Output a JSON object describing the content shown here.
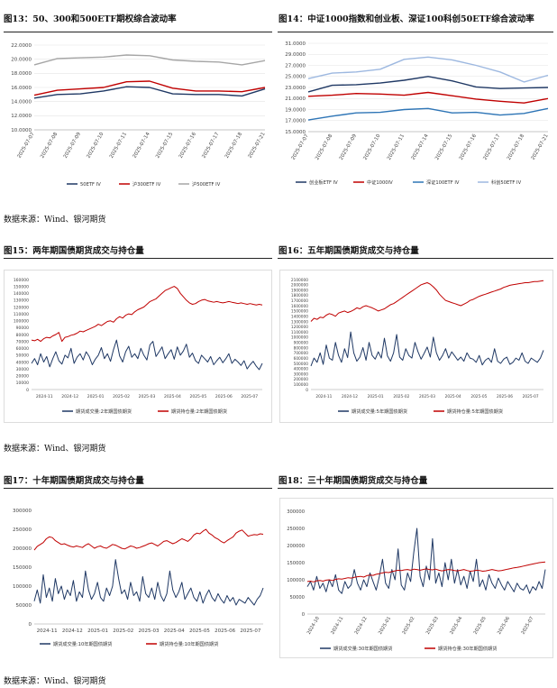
{
  "page": {
    "source_label": "数据来源：",
    "source_value": "Wind、银河期货"
  },
  "charts": [
    {
      "title": "图13：50、300和500ETF期权综合波动率",
      "type": "line",
      "x": [
        "2025-07-07",
        "2025-07-08",
        "2025-07-09",
        "2025-07-10",
        "2025-07-11",
        "2025-07-14",
        "2025-07-15",
        "2025-07-16",
        "2025-07-17",
        "2025-07-18",
        "2025-07-21"
      ],
      "ylim": [
        10,
        22
      ],
      "yticks": [
        "10.0000",
        "12.0000",
        "14.0000",
        "16.0000",
        "18.0000",
        "20.0000",
        "22.0000"
      ],
      "series": [
        {
          "name": "50ETF IV",
          "color": "#1f3864",
          "values": [
            14.5,
            15.0,
            15.1,
            15.5,
            16.1,
            16.0,
            15.1,
            15.0,
            15.0,
            14.8,
            15.8
          ]
        },
        {
          "name": "沪300ETF IV",
          "color": "#c00000",
          "values": [
            14.9,
            15.6,
            15.8,
            16.0,
            16.8,
            16.9,
            15.9,
            15.5,
            15.5,
            15.4,
            16.0
          ]
        },
        {
          "name": "沪500ETF IV",
          "color": "#a6a6a6",
          "values": [
            19.2,
            20.1,
            20.2,
            20.3,
            20.6,
            20.5,
            19.9,
            19.7,
            19.6,
            19.2,
            19.8
          ]
        }
      ]
    },
    {
      "title": "图14：中证1000指数和创业板、深证100科创50ETF综合波动率",
      "type": "line",
      "x": [
        "2025-07-07",
        "2025-07-08",
        "2025-07-09",
        "2025-07-10",
        "2025-07-11",
        "2025-07-14",
        "2025-07-15",
        "2025-07-16",
        "2025-07-17",
        "2025-07-18",
        "2025-07-21"
      ],
      "ylim": [
        15,
        31
      ],
      "yticks": [
        "15.0000",
        "17.0000",
        "19.0000",
        "21.0000",
        "23.0000",
        "25.0000",
        "27.0000",
        "29.0000",
        "31.0000"
      ],
      "series": [
        {
          "name": "创业板ETF IV",
          "color": "#1f3864",
          "values": [
            22.2,
            23.4,
            23.5,
            23.8,
            24.3,
            25.0,
            24.2,
            23.1,
            22.8,
            22.9,
            23.0
          ]
        },
        {
          "name": "中证1000IV",
          "color": "#c00000",
          "values": [
            21.4,
            21.6,
            21.9,
            21.8,
            21.6,
            22.1,
            21.5,
            20.9,
            20.5,
            20.2,
            21.0
          ]
        },
        {
          "name": "深证100ETF IV",
          "color": "#2e75b6",
          "values": [
            17.1,
            17.8,
            18.4,
            18.5,
            19.0,
            19.2,
            18.4,
            18.5,
            18.0,
            18.3,
            19.2
          ]
        },
        {
          "name": "科创50ETF IV",
          "color": "#9db8e0",
          "values": [
            24.6,
            25.6,
            25.8,
            26.3,
            28.1,
            28.5,
            28.0,
            27.0,
            25.8,
            24.0,
            25.2
          ]
        }
      ]
    },
    {
      "title": "图15：两年期国债期货成交与持仓量",
      "type": "line",
      "x_labels": [
        "2024-11",
        "2024-12",
        "2025-01",
        "2025-02",
        "2025-03",
        "2025-04",
        "2025-05",
        "2025-06",
        "2025-07"
      ],
      "ylim": [
        0,
        160000
      ],
      "yticks": [
        "0",
        "10000",
        "20000",
        "30000",
        "40000",
        "50000",
        "60000",
        "70000",
        "80000",
        "90000",
        "100000",
        "110000",
        "120000",
        "130000",
        "140000",
        "150000",
        "160000"
      ],
      "series": [
        {
          "name": "期货成交量:2年期国债期货",
          "color": "#1f3864",
          "values": [
            38000,
            45000,
            36000,
            52000,
            40000,
            48000,
            33000,
            45000,
            55000,
            42000,
            37000,
            50000,
            46000,
            60000,
            38000,
            47000,
            52000,
            43000,
            55000,
            48000,
            36000,
            44000,
            50000,
            61000,
            45000,
            52000,
            41000,
            58000,
            72000,
            49000,
            40000,
            55000,
            63000,
            47000,
            52000,
            45000,
            60000,
            50000,
            43000,
            65000,
            70000,
            48000,
            55000,
            62000,
            45000,
            52000,
            58000,
            44000,
            62000,
            50000,
            56000,
            66000,
            47000,
            53000,
            42000,
            38000,
            50000,
            45000,
            40000,
            48000,
            36000,
            42000,
            47000,
            39000,
            45000,
            52000,
            38000,
            44000,
            40000,
            35000,
            42000,
            30000,
            36000,
            41000,
            34000,
            29000,
            38000
          ]
        },
        {
          "name": "期货持仓量:2年期国债期货",
          "color": "#c00000",
          "values": [
            72000,
            71000,
            73000,
            70000,
            74000,
            76000,
            75000,
            78000,
            80000,
            83000,
            70000,
            76000,
            77000,
            79000,
            80000,
            82000,
            85000,
            84000,
            86000,
            88000,
            90000,
            92000,
            95000,
            93000,
            96000,
            99000,
            100000,
            98000,
            103000,
            106000,
            104000,
            108000,
            110000,
            109000,
            113000,
            116000,
            118000,
            120000,
            124000,
            128000,
            130000,
            132000,
            136000,
            140000,
            144000,
            146000,
            148000,
            150000,
            147000,
            140000,
            135000,
            130000,
            126000,
            124000,
            125000,
            128000,
            130000,
            131000,
            129000,
            128000,
            127000,
            128000,
            127000,
            126000,
            127000,
            128000,
            127000,
            126000,
            125000,
            126000,
            125000,
            124000,
            125000,
            124000,
            123000,
            124000,
            123000
          ]
        }
      ]
    },
    {
      "title": "图16：五年期国债期货成交与持仓量",
      "type": "line",
      "x_labels": [
        "2024-11",
        "2024-12",
        "2025-01",
        "2025-02",
        "2025-03",
        "2025-04",
        "2025-05",
        "2025-06",
        "2025-07"
      ],
      "ylim": [
        0,
        2100000
      ],
      "yticks": [
        "0",
        "100000",
        "200000",
        "300000",
        "400000",
        "500000",
        "600000",
        "700000",
        "800000",
        "900000",
        "1000000",
        "1100000",
        "1200000",
        "1300000",
        "1400000",
        "1500000",
        "1600000",
        "1700000",
        "1800000",
        "1900000",
        "2000000",
        "2100000"
      ],
      "series": [
        {
          "name": "期货成交量:5年期国债期货",
          "color": "#1f3864",
          "values": [
            450000,
            600000,
            520000,
            700000,
            480000,
            850000,
            600000,
            560000,
            900000,
            650000,
            520000,
            780000,
            610000,
            1100000,
            700000,
            540000,
            620000,
            800000,
            560000,
            900000,
            650000,
            580000,
            720000,
            600000,
            980000,
            640000,
            540000,
            700000,
            1050000,
            620000,
            560000,
            780000,
            650000,
            600000,
            900000,
            720000,
            580000,
            690000,
            810000,
            620000,
            1000000,
            700000,
            560000,
            650000,
            780000,
            600000,
            720000,
            640000,
            560000,
            620000,
            540000,
            700000,
            600000,
            580000,
            520000,
            650000,
            470000,
            560000,
            600000,
            520000,
            780000,
            540000,
            500000,
            580000,
            620000,
            480000,
            520000,
            600000,
            560000,
            700000,
            540000,
            500000,
            600000,
            560000,
            520000,
            600000,
            750000
          ]
        },
        {
          "name": "期货持仓量:5年期国债期货",
          "color": "#c00000",
          "values": [
            1300000,
            1360000,
            1340000,
            1380000,
            1370000,
            1420000,
            1450000,
            1430000,
            1400000,
            1460000,
            1480000,
            1500000,
            1470000,
            1490000,
            1520000,
            1560000,
            1540000,
            1580000,
            1600000,
            1580000,
            1560000,
            1530000,
            1500000,
            1520000,
            1540000,
            1580000,
            1620000,
            1640000,
            1680000,
            1720000,
            1760000,
            1800000,
            1840000,
            1880000,
            1920000,
            1960000,
            2000000,
            2020000,
            2040000,
            2010000,
            1960000,
            1900000,
            1820000,
            1760000,
            1700000,
            1680000,
            1660000,
            1640000,
            1620000,
            1600000,
            1630000,
            1660000,
            1700000,
            1720000,
            1750000,
            1780000,
            1800000,
            1820000,
            1840000,
            1860000,
            1880000,
            1900000,
            1920000,
            1950000,
            1970000,
            1990000,
            2000000,
            2010000,
            2020000,
            2030000,
            2040000,
            2040000,
            2050000,
            2060000,
            2060000,
            2070000,
            2080000
          ]
        }
      ]
    },
    {
      "title": "图17：十年期国债期货成交与持仓量",
      "type": "line",
      "x_labels": [
        "2024-11",
        "2024-12",
        "2025-01",
        "2025-02",
        "2025-03",
        "2025-04",
        "2025-05",
        "2025-06",
        "2025-07"
      ],
      "ylim": [
        0,
        300000
      ],
      "yticks": [
        "0",
        "50000",
        "100000",
        "150000",
        "200000",
        "250000",
        "300000"
      ],
      "series": [
        {
          "name": "期货成交量:10年期国债期货",
          "color": "#1f3864",
          "values": [
            60000,
            90000,
            55000,
            130000,
            70000,
            95000,
            60000,
            120000,
            80000,
            100000,
            65000,
            90000,
            75000,
            115000,
            60000,
            85000,
            70000,
            140000,
            90000,
            65000,
            80000,
            110000,
            70000,
            60000,
            95000,
            75000,
            100000,
            170000,
            120000,
            80000,
            90000,
            65000,
            110000,
            75000,
            85000,
            60000,
            125000,
            80000,
            70000,
            95000,
            65000,
            110000,
            75000,
            60000,
            80000,
            140000,
            90000,
            70000,
            85000,
            110000,
            65000,
            80000,
            95000,
            70000,
            60000,
            85000,
            55000,
            75000,
            90000,
            70000,
            60000,
            80000,
            65000,
            55000,
            75000,
            60000,
            70000,
            50000,
            65000,
            60000,
            55000,
            70000,
            60000,
            50000,
            65000,
            75000,
            95000
          ]
        },
        {
          "name": "期货持仓量:10年期国债期货",
          "color": "#c00000",
          "values": [
            195000,
            205000,
            210000,
            215000,
            225000,
            230000,
            228000,
            220000,
            215000,
            210000,
            212000,
            208000,
            205000,
            203000,
            206000,
            204000,
            202000,
            208000,
            212000,
            206000,
            200000,
            204000,
            206000,
            202000,
            200000,
            205000,
            210000,
            208000,
            204000,
            200000,
            198000,
            202000,
            206000,
            204000,
            200000,
            202000,
            205000,
            208000,
            212000,
            214000,
            210000,
            206000,
            212000,
            218000,
            220000,
            216000,
            212000,
            215000,
            220000,
            225000,
            222000,
            218000,
            225000,
            235000,
            240000,
            238000,
            245000,
            250000,
            240000,
            235000,
            228000,
            224000,
            218000,
            214000,
            220000,
            225000,
            230000,
            240000,
            245000,
            248000,
            240000,
            232000,
            234000,
            236000,
            235000,
            238000,
            237000
          ]
        }
      ]
    },
    {
      "title": "图18：三十年期国债期货成交与持仓量",
      "type": "line",
      "x_labels": [
        "2024-10",
        "2024-11",
        "2024-12",
        "2025-01",
        "2025-02",
        "2025-03",
        "2025-04",
        "2025-05",
        "2025-06",
        "2025-07"
      ],
      "ylim": [
        0,
        300000
      ],
      "yticks": [
        "0",
        "50000",
        "100000",
        "150000",
        "200000",
        "250000",
        "300000"
      ],
      "series": [
        {
          "name": "期货成交量:30年期国债期货",
          "color": "#1f3864",
          "values": [
            80000,
            95000,
            70000,
            110000,
            75000,
            90000,
            65000,
            100000,
            80000,
            115000,
            70000,
            60000,
            95000,
            75000,
            85000,
            130000,
            90000,
            70000,
            100000,
            80000,
            120000,
            95000,
            70000,
            110000,
            160000,
            90000,
            75000,
            130000,
            100000,
            190000,
            85000,
            70000,
            120000,
            95000,
            180000,
            250000,
            110000,
            80000,
            140000,
            100000,
            220000,
            90000,
            120000,
            80000,
            150000,
            100000,
            160000,
            90000,
            130000,
            85000,
            110000,
            75000,
            125000,
            95000,
            160000,
            80000,
            100000,
            70000,
            115000,
            90000,
            75000,
            105000,
            85000,
            70000,
            95000,
            80000,
            65000,
            90000,
            75000,
            70000,
            85000,
            60000,
            80000,
            70000,
            95000,
            75000,
            130000
          ]
        },
        {
          "name": "期货持仓量:30年期国债期货",
          "color": "#c00000",
          "values": [
            95000,
            96000,
            94000,
            97000,
            98000,
            96000,
            99000,
            100000,
            98000,
            101000,
            103000,
            102000,
            104000,
            106000,
            105000,
            107000,
            109000,
            110000,
            108000,
            112000,
            114000,
            113000,
            116000,
            118000,
            120000,
            122000,
            121000,
            124000,
            126000,
            128000,
            127000,
            129000,
            130000,
            128000,
            131000,
            130000,
            128000,
            130000,
            132000,
            130000,
            129000,
            131000,
            128000,
            126000,
            128000,
            130000,
            129000,
            127000,
            126000,
            128000,
            130000,
            127000,
            125000,
            126000,
            128000,
            127000,
            125000,
            126000,
            128000,
            130000,
            128000,
            126000,
            127000,
            129000,
            131000,
            133000,
            135000,
            136000,
            138000,
            140000,
            142000,
            144000,
            146000,
            148000,
            150000,
            151000,
            152000
          ]
        }
      ]
    }
  ]
}
